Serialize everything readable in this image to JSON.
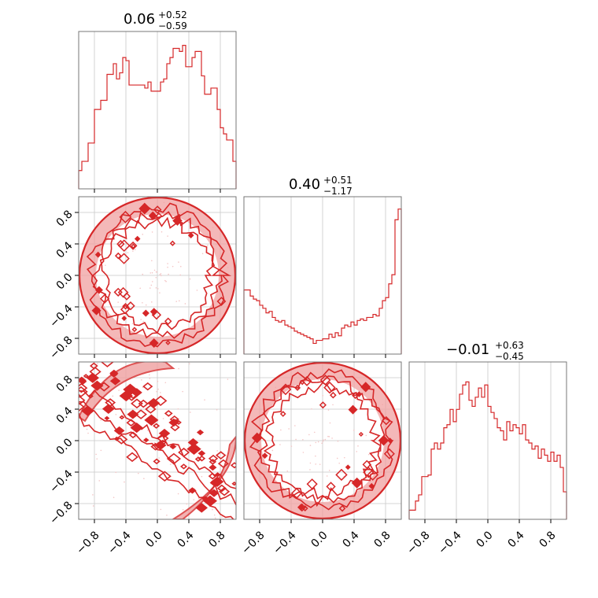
{
  "chart_data": {
    "type": "corner",
    "color": "#d62728",
    "fill_color": "#f0a0a0",
    "grid": true,
    "tick_values": [
      -0.8,
      -0.4,
      0.0,
      0.4,
      0.8
    ],
    "tick_labels": [
      "−0.8",
      "−0.4",
      "0.0",
      "0.4",
      "0.8"
    ],
    "range": [
      -1.0,
      1.0
    ],
    "titles": [
      {
        "value": "0.06",
        "plus": "+0.52",
        "minus": "−0.59"
      },
      {
        "value": "0.40",
        "plus": "+0.51",
        "minus": "−1.17"
      },
      {
        "value": "−0.01",
        "plus": "+0.63",
        "minus": "−0.45"
      }
    ],
    "histograms": [
      {
        "parameter": 0,
        "bins": 50,
        "counts": [
          0.12,
          0.18,
          0.18,
          0.3,
          0.3,
          0.52,
          0.52,
          0.58,
          0.58,
          0.75,
          0.75,
          0.82,
          0.72,
          0.76,
          0.86,
          0.84,
          0.68,
          0.68,
          0.68,
          0.68,
          0.68,
          0.66,
          0.7,
          0.64,
          0.64,
          0.64,
          0.7,
          0.72,
          0.82,
          0.86,
          0.92,
          0.92,
          0.9,
          0.94,
          0.8,
          0.8,
          0.86,
          0.9,
          0.9,
          0.74,
          0.62,
          0.62,
          0.66,
          0.66,
          0.52,
          0.4,
          0.36,
          0.32,
          0.32,
          0.18
        ]
      },
      {
        "parameter": 1,
        "bins": 50,
        "counts": [
          0.42,
          0.42,
          0.38,
          0.36,
          0.35,
          0.32,
          0.3,
          0.27,
          0.28,
          0.24,
          0.22,
          0.21,
          0.22,
          0.19,
          0.18,
          0.17,
          0.15,
          0.14,
          0.13,
          0.12,
          0.11,
          0.1,
          0.07,
          0.09,
          0.09,
          0.1,
          0.1,
          0.13,
          0.11,
          0.14,
          0.12,
          0.17,
          0.19,
          0.18,
          0.21,
          0.19,
          0.22,
          0.23,
          0.22,
          0.24,
          0.24,
          0.26,
          0.25,
          0.3,
          0.35,
          0.37,
          0.46,
          0.52,
          0.88,
          0.95
        ]
      },
      {
        "parameter": 2,
        "bins": 50,
        "counts": [
          0.06,
          0.06,
          0.12,
          0.16,
          0.28,
          0.28,
          0.29,
          0.46,
          0.5,
          0.46,
          0.5,
          0.6,
          0.62,
          0.72,
          0.64,
          0.72,
          0.82,
          0.88,
          0.9,
          0.78,
          0.74,
          0.8,
          0.86,
          0.8,
          0.88,
          0.74,
          0.7,
          0.66,
          0.6,
          0.58,
          0.52,
          0.64,
          0.58,
          0.62,
          0.6,
          0.56,
          0.62,
          0.52,
          0.5,
          0.46,
          0.48,
          0.4,
          0.46,
          0.42,
          0.38,
          0.44,
          0.38,
          0.42,
          0.34,
          0.18
        ]
      }
    ],
    "pairs": [
      {
        "x_param": 0,
        "y_param": 1,
        "shape": "ring"
      },
      {
        "x_param": 0,
        "y_param": 2,
        "shape": "lower-left-to-upper-right band with arc"
      },
      {
        "x_param": 1,
        "y_param": 2,
        "shape": "ring"
      }
    ]
  }
}
